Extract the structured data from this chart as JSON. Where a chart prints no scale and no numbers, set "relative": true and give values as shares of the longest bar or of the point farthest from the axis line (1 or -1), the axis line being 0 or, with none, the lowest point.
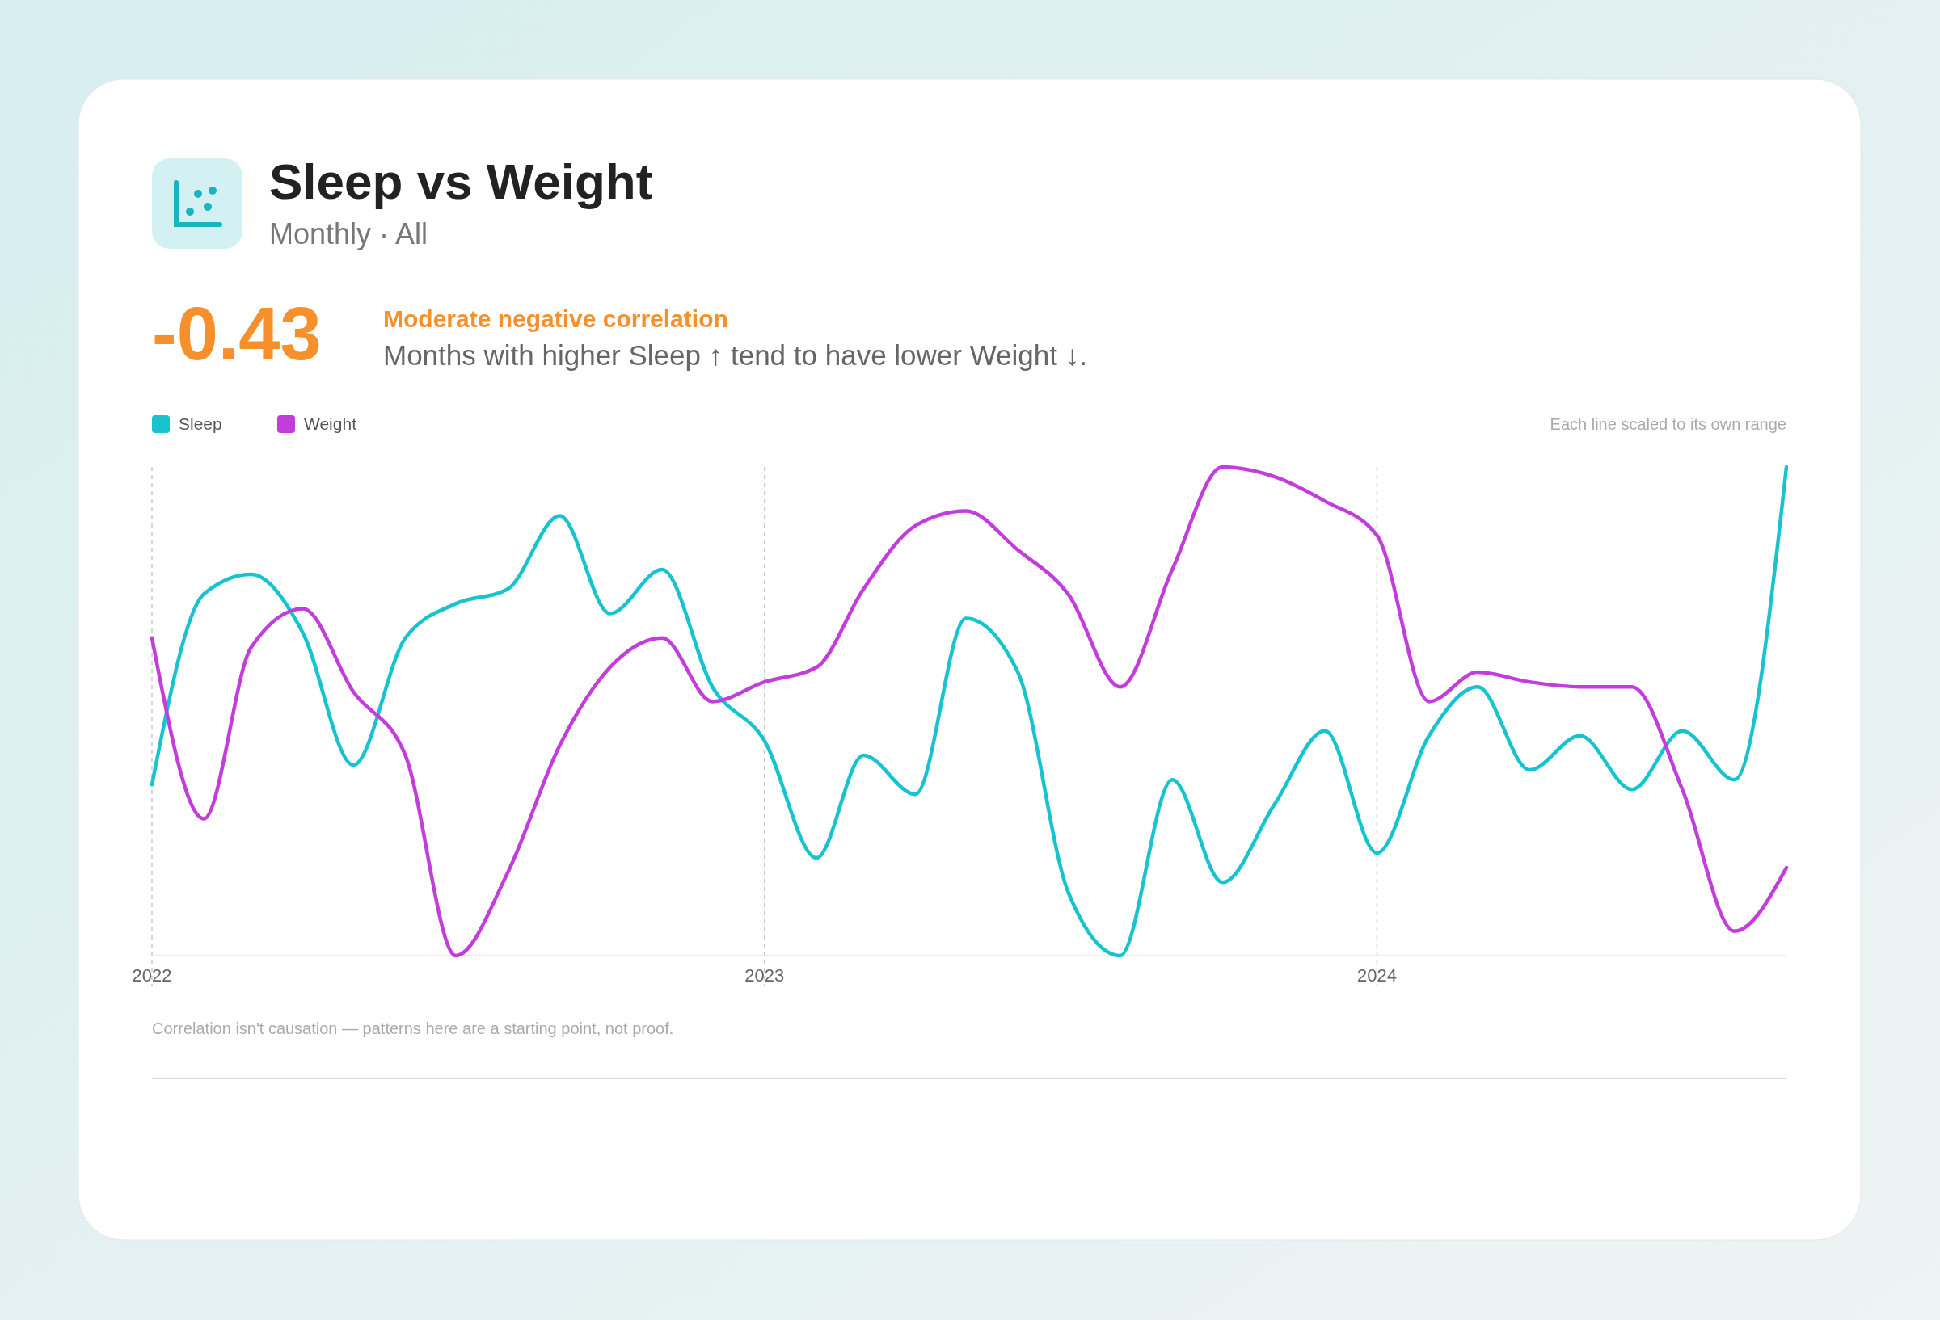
{
  "chart_data": {
    "type": "line",
    "title": "Sleep vs Weight",
    "subtitle": "Monthly · All",
    "annotations": [
      "-0.43",
      "Moderate negative correlation",
      "Months with higher Sleep ↑ tend to have lower Weight ↓.",
      "Each line scaled to its own range",
      "Correlation isn't causation — patterns here are a starting point, not proof."
    ],
    "x": [
      "2022-01",
      "2022-02",
      "2022-03",
      "2022-04",
      "2022-05",
      "2022-06",
      "2022-07",
      "2022-08",
      "2022-09",
      "2022-10",
      "2022-11",
      "2022-12",
      "2023-01",
      "2023-02",
      "2023-03",
      "2023-04",
      "2023-05",
      "2023-06",
      "2023-07",
      "2023-08",
      "2023-09",
      "2023-10",
      "2023-11",
      "2023-12",
      "2024-01",
      "2024-02",
      "2024-03",
      "2024-04",
      "2024-05",
      "2024-06",
      "2024-07",
      "2024-08",
      "2024-09"
    ],
    "xlim": [
      "2022-01",
      "2024-09"
    ],
    "xticks": [
      "2022",
      "2023",
      "2024"
    ],
    "relative": true,
    "grid": "x",
    "legend": "top left",
    "marker": "none",
    "line_style": "solid",
    "series": [
      {
        "name": "Sleep",
        "color": "#17c3cf",
        "values": [
          0.35,
          0.74,
          0.78,
          0.66,
          0.39,
          0.65,
          0.72,
          0.75,
          0.9,
          0.7,
          0.79,
          0.55,
          0.44,
          0.2,
          0.41,
          0.33,
          0.69,
          0.58,
          0.13,
          0,
          0.36,
          0.15,
          0.31,
          0.46,
          0.21,
          0.45,
          0.55,
          0.38,
          0.45,
          0.34,
          0.46,
          0.36,
          1
        ]
      },
      {
        "name": "Weight",
        "color": "#c23ddb",
        "values": [
          0.65,
          0.28,
          0.63,
          0.71,
          0.54,
          0.41,
          0,
          0.17,
          0.43,
          0.59,
          0.65,
          0.52,
          0.56,
          0.59,
          0.75,
          0.88,
          0.91,
          0.83,
          0.74,
          0.55,
          0.79,
          1,
          0.98,
          0.93,
          0.86,
          0.52,
          0.58,
          0.56,
          0.55,
          0.55,
          0.34,
          0.05,
          0.18
        ]
      }
    ]
  }
}
